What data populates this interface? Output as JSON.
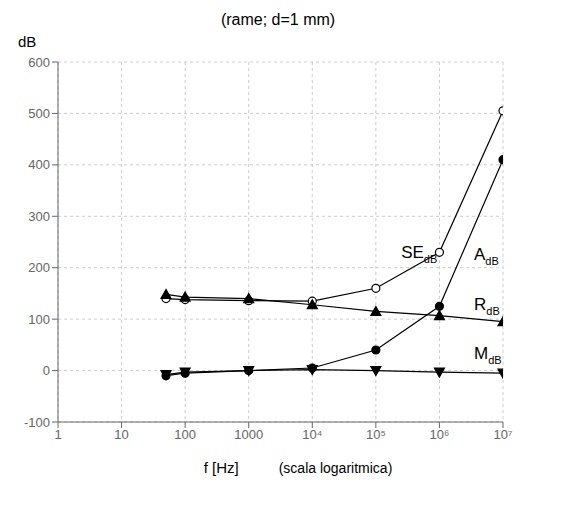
{
  "chart_data": {
    "type": "line",
    "title": "(rame; d=1 mm)",
    "xlabel": "f [Hz]",
    "xlabel_note": "(scala logaritmica)",
    "ylabel": "dB",
    "log": "x",
    "grid": true,
    "xlim": [
      1,
      10000000
    ],
    "ylim": [
      -100,
      600
    ],
    "xticks": [
      1,
      10,
      100,
      1000,
      {
        "value": 10000,
        "label": "10⁴"
      },
      {
        "value": 100000,
        "label": "10⁵"
      },
      {
        "value": 1000000,
        "label": "10⁶"
      },
      {
        "value": 10000000,
        "label": "10⁷"
      }
    ],
    "yticks": [
      -100,
      0,
      100,
      200,
      300,
      400,
      500,
      600
    ],
    "x": [
      50,
      100,
      1000,
      10000,
      100000,
      1000000,
      10000000
    ],
    "series": [
      {
        "name": "SE",
        "color": "black",
        "marker": "circle-open",
        "values": [
          140,
          138,
          136,
          135,
          160,
          230,
          505
        ]
      },
      {
        "name": "A",
        "color": "black",
        "marker": "circle",
        "values": [
          -10,
          -5,
          0,
          5,
          40,
          125,
          410
        ]
      },
      {
        "name": "R",
        "color": "black",
        "marker": "triangle-up",
        "values": [
          148,
          143,
          140,
          128,
          115,
          107,
          95
        ]
      },
      {
        "name": "M",
        "color": "black",
        "marker": "triangle-down",
        "values": [
          -8,
          -3,
          0,
          2,
          0,
          -3,
          -5
        ]
      }
    ],
    "annotations": [
      {
        "text": "SE",
        "subscript": "dB",
        "x": 250000,
        "y": 218
      },
      {
        "text": "A",
        "subscript": "dB",
        "x": 3500000,
        "y": 215
      },
      {
        "text": "R",
        "subscript": "dB",
        "x": 3500000,
        "y": 118
      },
      {
        "text": "M",
        "subscript": "dB",
        "x": 3500000,
        "y": 22
      }
    ]
  }
}
